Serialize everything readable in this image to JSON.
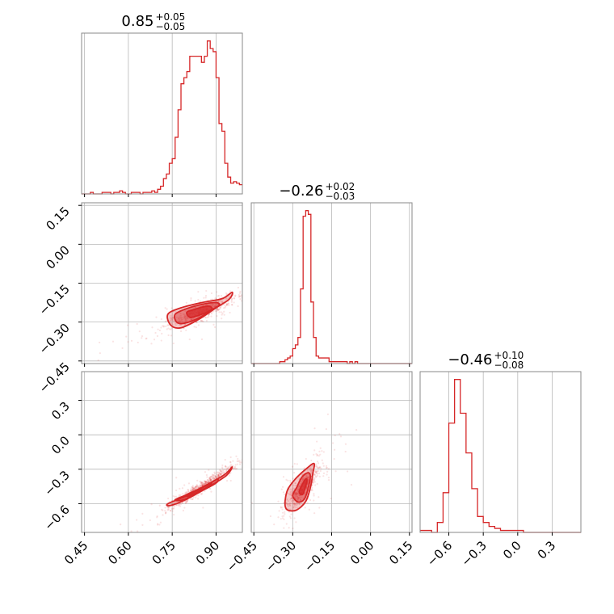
{
  "chart_data": {
    "type": "corner",
    "parameters": [
      {
        "title_main": "0.85",
        "title_sup": "+0.05",
        "title_sub": "−0.05",
        "range": [
          0.44,
          0.99
        ],
        "ticks": [
          0.45,
          0.6,
          0.75,
          0.9
        ],
        "tick_labels": [
          "0.45",
          "0.60",
          "0.75",
          "0.90"
        ]
      },
      {
        "title_main": "−0.26",
        "title_sup": "+0.02",
        "title_sub": "−0.03",
        "range": [
          -0.46,
          0.16
        ],
        "ticks": [
          -0.45,
          -0.3,
          -0.15,
          0.0,
          0.15
        ],
        "tick_labels": [
          "−0.45",
          "−0.30",
          "−0.15",
          "0.00",
          "0.15"
        ]
      },
      {
        "title_main": "−0.46",
        "title_sup": "+0.10",
        "title_sub": "−0.08",
        "range": [
          -0.85,
          0.55
        ],
        "ticks": [
          -0.6,
          -0.3,
          0.0,
          0.3
        ],
        "tick_labels": [
          "−0.6",
          "−0.3",
          "0.0",
          "0.3"
        ]
      }
    ],
    "histograms": [
      {
        "param": 0,
        "bin_edges": [
          0.44,
          0.45,
          0.46,
          0.47,
          0.48,
          0.49,
          0.5,
          0.51,
          0.52,
          0.53,
          0.54,
          0.55,
          0.56,
          0.57,
          0.58,
          0.59,
          0.6,
          0.61,
          0.62,
          0.63,
          0.64,
          0.65,
          0.66,
          0.67,
          0.68,
          0.69,
          0.7,
          0.71,
          0.72,
          0.73,
          0.74,
          0.75,
          0.76,
          0.77,
          0.78,
          0.79,
          0.8,
          0.81,
          0.82,
          0.83,
          0.84,
          0.85,
          0.86,
          0.87,
          0.88,
          0.89,
          0.9,
          0.91,
          0.92,
          0.93,
          0.94,
          0.95,
          0.96,
          0.97,
          0.98,
          0.99
        ],
        "counts": [
          0,
          0,
          0,
          1,
          0,
          0,
          0,
          1,
          1,
          1,
          0,
          1,
          1,
          2,
          1,
          0,
          0,
          1,
          1,
          1,
          0,
          1,
          1,
          1,
          2,
          1,
          3,
          5,
          10,
          13,
          20,
          23,
          37,
          55,
          72,
          76,
          80,
          90,
          90,
          90,
          90,
          86,
          90,
          100,
          95,
          93,
          76,
          46,
          41,
          20,
          11,
          7,
          8,
          7,
          6
        ]
      },
      {
        "param": 1,
        "bin_edges": [
          -0.46,
          -0.45,
          -0.44,
          -0.43,
          -0.42,
          -0.41,
          -0.4,
          -0.39,
          -0.38,
          -0.37,
          -0.36,
          -0.35,
          -0.34,
          -0.33,
          -0.32,
          -0.31,
          -0.3,
          -0.29,
          -0.28,
          -0.27,
          -0.26,
          -0.25,
          -0.24,
          -0.23,
          -0.22,
          -0.21,
          -0.2,
          -0.19,
          -0.18,
          -0.17,
          -0.16,
          -0.15,
          -0.14,
          -0.13,
          -0.12,
          -0.11,
          -0.1,
          -0.09,
          -0.08,
          -0.07,
          -0.06,
          -0.05,
          -0.04,
          -0.03,
          -0.02,
          -0.01,
          0.0,
          0.01,
          0.02,
          0.03,
          0.04,
          0.05,
          0.06,
          0.07,
          0.08,
          0.09,
          0.1,
          0.11,
          0.12,
          0.13,
          0.14,
          0.15,
          0.16
        ],
        "counts": [
          0,
          0,
          0,
          0,
          0,
          0,
          0,
          0,
          0,
          0,
          0,
          1,
          1,
          2,
          3,
          4,
          8,
          10,
          14,
          40,
          79,
          82,
          80,
          33,
          14,
          4,
          3,
          3,
          3,
          3,
          1,
          1,
          1,
          1,
          1,
          1,
          1,
          0,
          1,
          0,
          1,
          0,
          0,
          0,
          0,
          0,
          0,
          0,
          0,
          0,
          0,
          0,
          0,
          0,
          0,
          0,
          0,
          0,
          0,
          0,
          0,
          0
        ]
      },
      {
        "param": 2,
        "bin_edges": [
          -0.85,
          -0.8,
          -0.75,
          -0.7,
          -0.65,
          -0.6,
          -0.55,
          -0.5,
          -0.45,
          -0.4,
          -0.35,
          -0.3,
          -0.25,
          -0.2,
          -0.15,
          -0.1,
          -0.05,
          0.0,
          0.05,
          0.1,
          0.15,
          0.2,
          0.25,
          0.3,
          0.35,
          0.4,
          0.45,
          0.5,
          0.55
        ],
        "counts": [
          1,
          1,
          0,
          5,
          20,
          55,
          77,
          60,
          40,
          22,
          8,
          5,
          3,
          2,
          1,
          1,
          1,
          1,
          0,
          0,
          0,
          0,
          0,
          0,
          0,
          0,
          0,
          0
        ]
      }
    ],
    "pairs": [
      {
        "x_param": 0,
        "y_param": 1,
        "rho": 0.84,
        "center": [
          0.845,
          -0.262
        ],
        "sigma": [
          0.055,
          0.028
        ],
        "contours": [
          {
            "level": "1sigma",
            "points": [
              [
                0.8,
                -0.262
              ],
              [
                0.83,
                -0.25
              ],
              [
                0.86,
                -0.24
              ],
              [
                0.88,
                -0.24
              ],
              [
                0.885,
                -0.252
              ],
              [
                0.86,
                -0.266
              ],
              [
                0.83,
                -0.278
              ],
              [
                0.81,
                -0.282
              ]
            ]
          },
          {
            "level": "2sigma",
            "points": [
              [
                0.76,
                -0.27
              ],
              [
                0.8,
                -0.248
              ],
              [
                0.85,
                -0.232
              ],
              [
                0.9,
                -0.225
              ],
              [
                0.91,
                -0.236
              ],
              [
                0.88,
                -0.256
              ],
              [
                0.84,
                -0.285
              ],
              [
                0.79,
                -0.305
              ],
              [
                0.765,
                -0.3
              ]
            ]
          },
          {
            "level": "3sigma",
            "points": [
              [
                0.735,
                -0.27
              ],
              [
                0.78,
                -0.245
              ],
              [
                0.85,
                -0.225
              ],
              [
                0.92,
                -0.21
              ],
              [
                0.955,
                -0.185
              ],
              [
                0.945,
                -0.212
              ],
              [
                0.9,
                -0.245
              ],
              [
                0.84,
                -0.29
              ],
              [
                0.78,
                -0.322
              ],
              [
                0.745,
                -0.312
              ]
            ]
          }
        ]
      },
      {
        "x_param": 0,
        "y_param": 2,
        "rho": 0.97,
        "center": [
          0.845,
          -0.46
        ],
        "sigma": [
          0.055,
          0.09
        ],
        "contours": [
          {
            "level": "1sigma",
            "points": [
              [
                0.8,
                -0.52
              ],
              [
                0.84,
                -0.475
              ],
              [
                0.875,
                -0.43
              ],
              [
                0.885,
                -0.42
              ],
              [
                0.875,
                -0.45
              ],
              [
                0.84,
                -0.495
              ],
              [
                0.805,
                -0.535
              ]
            ]
          },
          {
            "level": "2sigma",
            "points": [
              [
                0.76,
                -0.565
              ],
              [
                0.82,
                -0.5
              ],
              [
                0.88,
                -0.42
              ],
              [
                0.905,
                -0.385
              ],
              [
                0.9,
                -0.42
              ],
              [
                0.85,
                -0.49
              ],
              [
                0.79,
                -0.565
              ]
            ]
          },
          {
            "level": "3sigma",
            "points": [
              [
                0.735,
                -0.6
              ],
              [
                0.8,
                -0.53
              ],
              [
                0.88,
                -0.42
              ],
              [
                0.93,
                -0.345
              ],
              [
                0.955,
                -0.28
              ],
              [
                0.935,
                -0.355
              ],
              [
                0.87,
                -0.46
              ],
              [
                0.8,
                -0.56
              ],
              [
                0.745,
                -0.615
              ]
            ]
          }
        ]
      },
      {
        "x_param": 1,
        "y_param": 2,
        "rho": 0.78,
        "center": [
          -0.26,
          -0.46
        ],
        "sigma": [
          0.028,
          0.09
        ],
        "contours": [
          {
            "level": "1sigma",
            "points": [
              [
                -0.275,
                -0.5
              ],
              [
                -0.265,
                -0.44
              ],
              [
                -0.25,
                -0.385
              ],
              [
                -0.245,
                -0.4
              ],
              [
                -0.252,
                -0.46
              ],
              [
                -0.262,
                -0.52
              ]
            ]
          },
          {
            "level": "2sigma",
            "points": [
              [
                -0.3,
                -0.53
              ],
              [
                -0.285,
                -0.46
              ],
              [
                -0.265,
                -0.37
              ],
              [
                -0.242,
                -0.33
              ],
              [
                -0.232,
                -0.36
              ],
              [
                -0.24,
                -0.46
              ],
              [
                -0.255,
                -0.56
              ],
              [
                -0.28,
                -0.585
              ]
            ]
          },
          {
            "level": "3sigma",
            "points": [
              [
                -0.33,
                -0.6
              ],
              [
                -0.32,
                -0.48
              ],
              [
                -0.29,
                -0.385
              ],
              [
                -0.25,
                -0.3
              ],
              [
                -0.218,
                -0.25
              ],
              [
                -0.222,
                -0.33
              ],
              [
                -0.232,
                -0.46
              ],
              [
                -0.25,
                -0.58
              ],
              [
                -0.285,
                -0.655
              ],
              [
                -0.32,
                -0.655
              ]
            ]
          }
        ]
      }
    ],
    "colors": {
      "line": "#d62728",
      "fill": "#f1b4b5",
      "grid": "#b8b8b8",
      "frame": "#888888"
    },
    "grid": true,
    "legend": "none"
  }
}
